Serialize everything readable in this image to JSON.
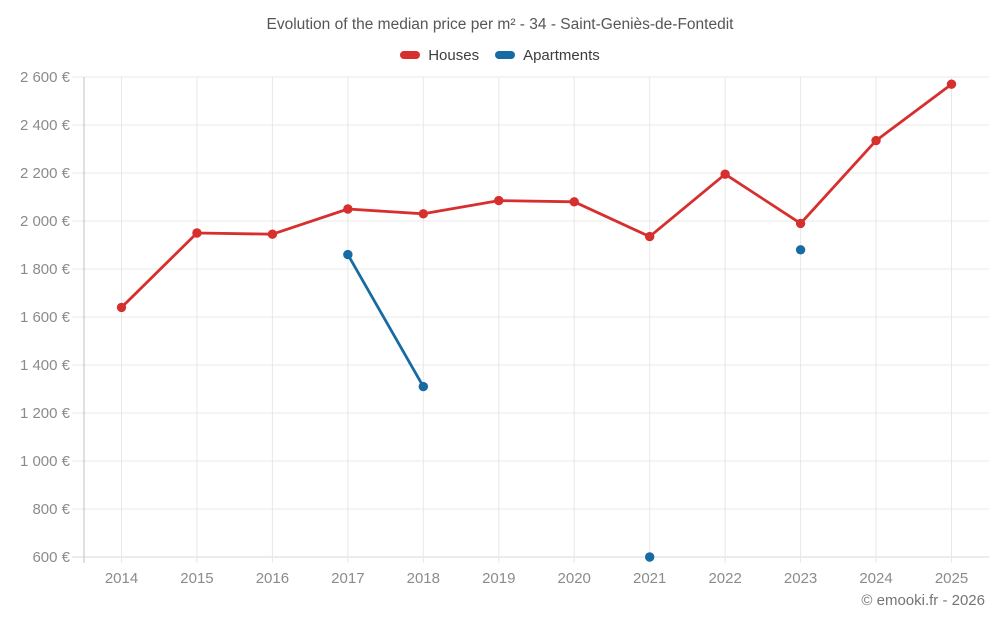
{
  "title": "Evolution of the median price per m² - 34 - Saint-Geniès-de-Fontedit",
  "legend": [
    {
      "label": "Houses",
      "color": "#d62f2e"
    },
    {
      "label": "Apartments",
      "color": "#176ba3"
    }
  ],
  "footer": "© emooki.fr - 2026",
  "chart_data": {
    "type": "line",
    "title": "Evolution of the median price per m² - 34 - Saint-Geniès-de-Fontedit",
    "x": [
      "2014",
      "2015",
      "2016",
      "2017",
      "2018",
      "2019",
      "2020",
      "2021",
      "2022",
      "2023",
      "2024",
      "2025"
    ],
    "series": [
      {
        "name": "Houses",
        "color": "#d62f2e",
        "values": [
          1640,
          1950,
          1945,
          2050,
          2030,
          2085,
          2080,
          1935,
          2195,
          1990,
          2335,
          2570
        ]
      },
      {
        "name": "Apartments",
        "color": "#176ba3",
        "values": [
          null,
          null,
          null,
          1860,
          1310,
          null,
          null,
          600,
          null,
          1880,
          null,
          null
        ]
      }
    ],
    "ylim": [
      600,
      2600
    ],
    "ytick_values": [
      600,
      800,
      1000,
      1200,
      1400,
      1600,
      1800,
      2000,
      2200,
      2400,
      2600
    ],
    "ytick_labels": [
      "600 €",
      "800 €",
      "1 000 €",
      "1 200 €",
      "1 400 €",
      "1 600 €",
      "1 800 €",
      "2 000 €",
      "2 200 €",
      "2 400 €",
      "2 600 €"
    ],
    "grid": true,
    "legend_position": "top",
    "currency": "€"
  }
}
